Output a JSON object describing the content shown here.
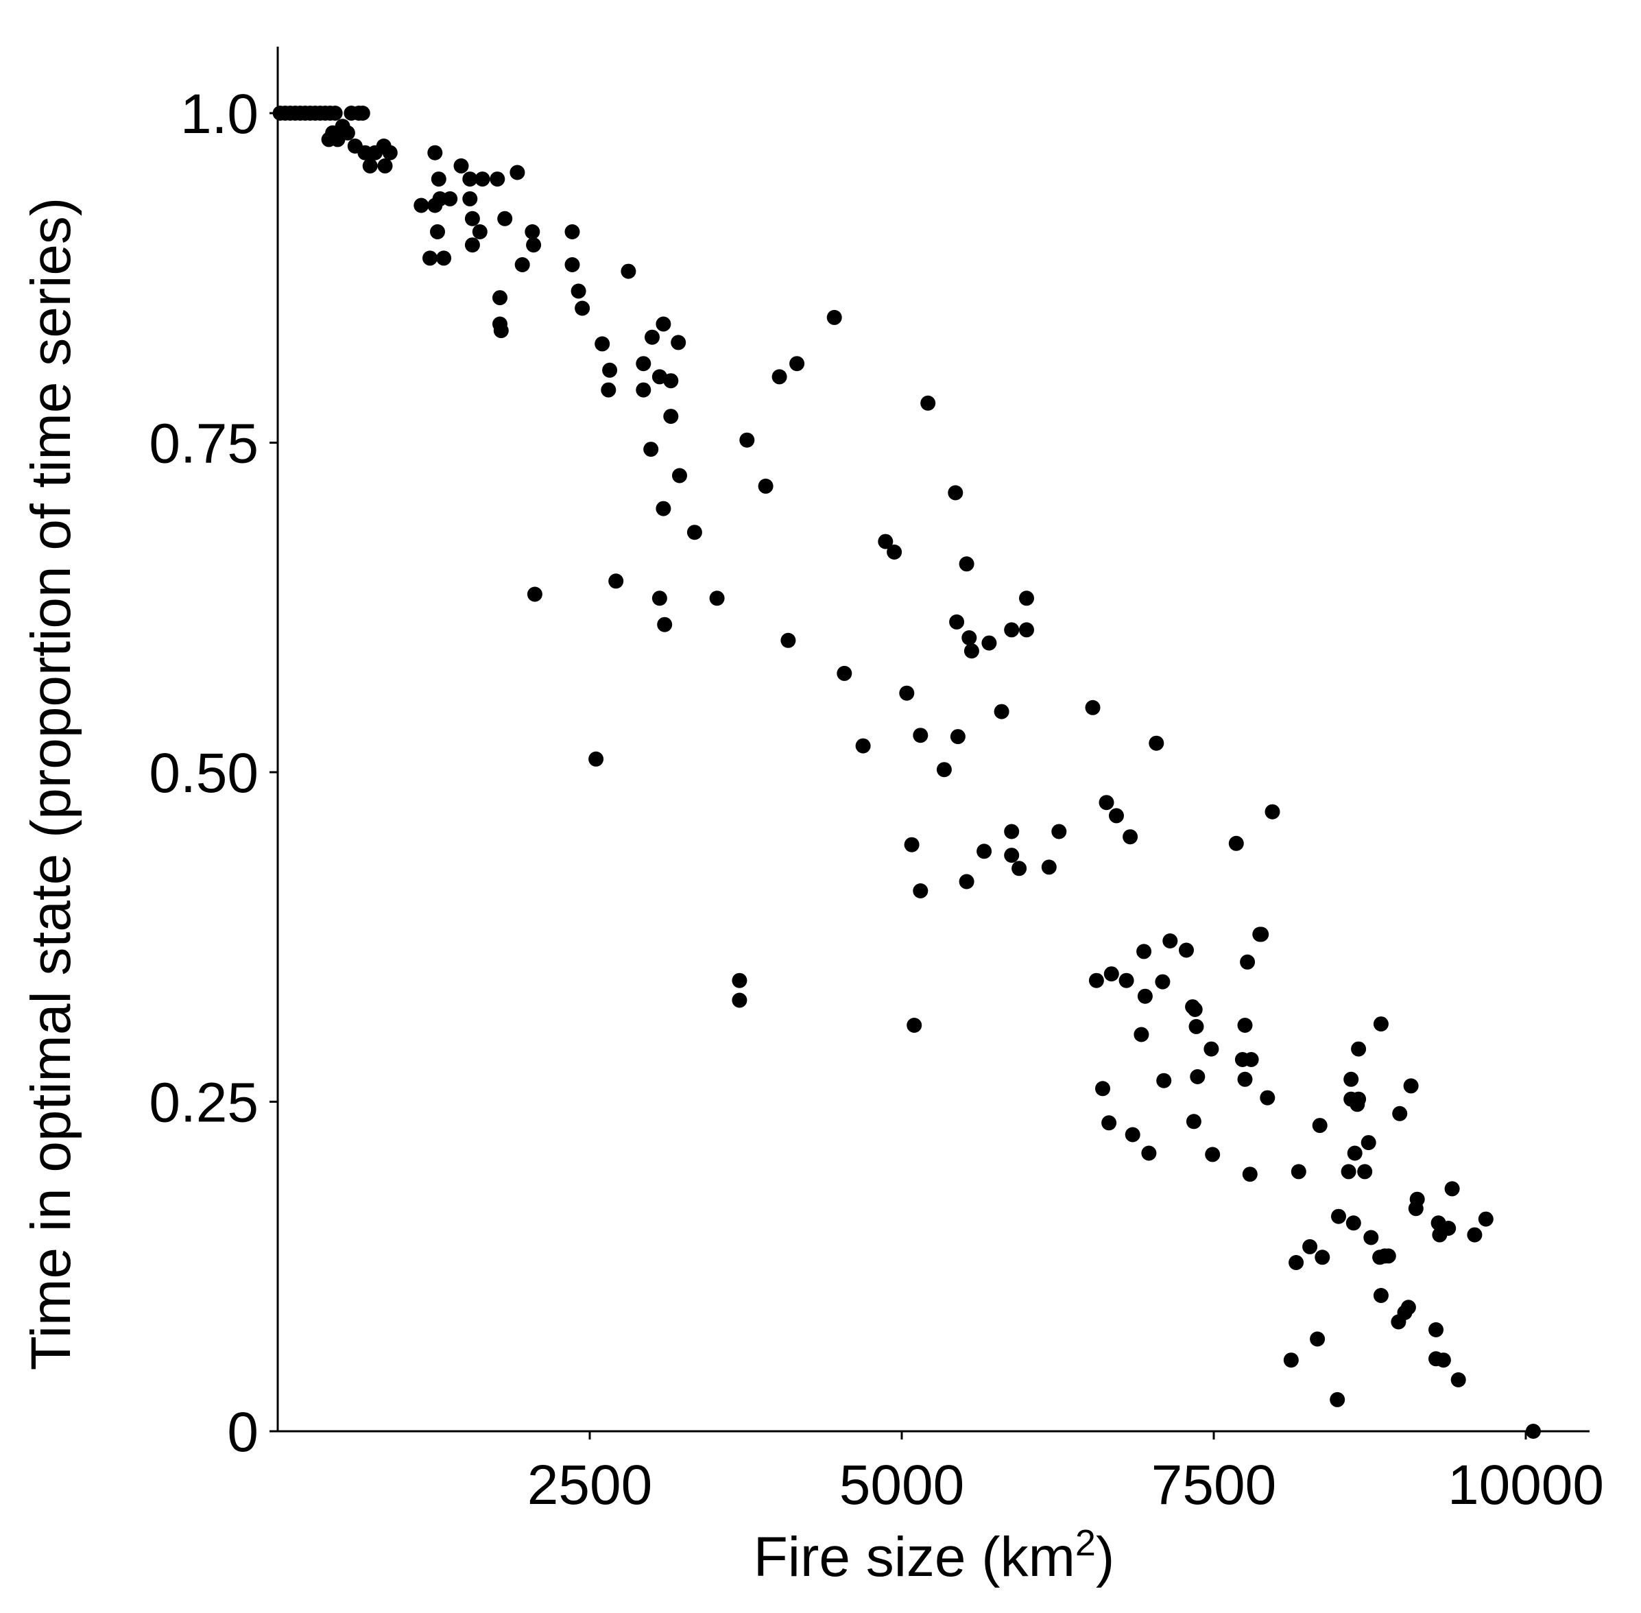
{
  "chart_data": {
    "type": "scatter",
    "title": "",
    "xlabel": "Fire size (km",
    "xlabel_sup": "2",
    "xlabel_close": ")",
    "ylabel": "Time in optimal state (proportion of time series)",
    "xlim": [
      0,
      10400
    ],
    "ylim": [
      0,
      1.05
    ],
    "x_ticks": [
      {
        "value": 2500,
        "label": "2500"
      },
      {
        "value": 5000,
        "label": "5000"
      },
      {
        "value": 7500,
        "label": "7500"
      },
      {
        "value": 10000,
        "label": "10000"
      }
    ],
    "y_ticks": [
      {
        "value": 0,
        "label": "0"
      },
      {
        "value": 0.25,
        "label": "0.25"
      },
      {
        "value": 0.5,
        "label": "0.50"
      },
      {
        "value": 0.75,
        "label": "0.75"
      },
      {
        "value": 1.0,
        "label": "1.0"
      }
    ],
    "grid": false,
    "legend": "none",
    "marker_color": "#000000",
    "points": [
      [
        20,
        1.0
      ],
      [
        60,
        1.0
      ],
      [
        100,
        1.0
      ],
      [
        140,
        1.0
      ],
      [
        180,
        1.0
      ],
      [
        220,
        1.0
      ],
      [
        260,
        1.0
      ],
      [
        300,
        1.0
      ],
      [
        340,
        1.0
      ],
      [
        380,
        1.0
      ],
      [
        420,
        1.0
      ],
      [
        460,
        1.0
      ],
      [
        410,
        0.98
      ],
      [
        440,
        0.985
      ],
      [
        480,
        0.98
      ],
      [
        520,
        0.99
      ],
      [
        560,
        0.985
      ],
      [
        590,
        1.0
      ],
      [
        620,
        0.975
      ],
      [
        650,
        1.0
      ],
      [
        680,
        1.0
      ],
      [
        700,
        0.97
      ],
      [
        740,
        0.96
      ],
      [
        780,
        0.97
      ],
      [
        850,
        0.975
      ],
      [
        860,
        0.96
      ],
      [
        900,
        0.97
      ],
      [
        1150,
        0.93
      ],
      [
        1220,
        0.89
      ],
      [
        1260,
        0.97
      ],
      [
        1260,
        0.93
      ],
      [
        1280,
        0.91
      ],
      [
        1290,
        0.95
      ],
      [
        1300,
        0.935
      ],
      [
        1330,
        0.89
      ],
      [
        1380,
        0.935
      ],
      [
        1470,
        0.96
      ],
      [
        1540,
        0.95
      ],
      [
        1540,
        0.935
      ],
      [
        1560,
        0.92
      ],
      [
        1560,
        0.9
      ],
      [
        1620,
        0.91
      ],
      [
        1640,
        0.95
      ],
      [
        1760,
        0.95
      ],
      [
        1780,
        0.86
      ],
      [
        1780,
        0.84
      ],
      [
        1790,
        0.835
      ],
      [
        1820,
        0.92
      ],
      [
        1920,
        0.955
      ],
      [
        1960,
        0.885
      ],
      [
        2040,
        0.91
      ],
      [
        2050,
        0.9
      ],
      [
        2060,
        0.635
      ],
      [
        2360,
        0.885
      ],
      [
        2360,
        0.91
      ],
      [
        2410,
        0.865
      ],
      [
        2440,
        0.852
      ],
      [
        2550,
        0.51
      ],
      [
        2600,
        0.825
      ],
      [
        2650,
        0.79
      ],
      [
        2660,
        0.805
      ],
      [
        2710,
        0.645
      ],
      [
        2810,
        0.88
      ],
      [
        2930,
        0.81
      ],
      [
        2930,
        0.79
      ],
      [
        2990,
        0.745
      ],
      [
        3000,
        0.83
      ],
      [
        3060,
        0.8
      ],
      [
        3060,
        0.632
      ],
      [
        3090,
        0.84
      ],
      [
        3090,
        0.7
      ],
      [
        3100,
        0.612
      ],
      [
        3150,
        0.797
      ],
      [
        3150,
        0.77
      ],
      [
        3210,
        0.826
      ],
      [
        3220,
        0.725
      ],
      [
        3340,
        0.682
      ],
      [
        3520,
        0.632
      ],
      [
        3700,
        0.342
      ],
      [
        3700,
        0.327
      ],
      [
        3760,
        0.752
      ],
      [
        3910,
        0.717
      ],
      [
        4020,
        0.8
      ],
      [
        4090,
        0.6
      ],
      [
        4160,
        0.81
      ],
      [
        4460,
        0.845
      ],
      [
        4540,
        0.575
      ],
      [
        4690,
        0.52
      ],
      [
        4870,
        0.675
      ],
      [
        4940,
        0.667
      ],
      [
        5040,
        0.56
      ],
      [
        5080,
        0.445
      ],
      [
        5100,
        0.308
      ],
      [
        5150,
        0.528
      ],
      [
        5150,
        0.41
      ],
      [
        5210,
        0.78
      ],
      [
        5340,
        0.502
      ],
      [
        5430,
        0.712
      ],
      [
        5440,
        0.614
      ],
      [
        5450,
        0.527
      ],
      [
        5520,
        0.658
      ],
      [
        5520,
        0.417
      ],
      [
        5540,
        0.602
      ],
      [
        5560,
        0.592
      ],
      [
        5660,
        0.44
      ],
      [
        5700,
        0.598
      ],
      [
        5800,
        0.546
      ],
      [
        5880,
        0.608
      ],
      [
        5880,
        0.455
      ],
      [
        5880,
        0.437
      ],
      [
        5940,
        0.427
      ],
      [
        6000,
        0.632
      ],
      [
        6000,
        0.608
      ],
      [
        6180,
        0.428
      ],
      [
        6260,
        0.455
      ],
      [
        6530,
        0.549
      ],
      [
        6560,
        0.342
      ],
      [
        6610,
        0.26
      ],
      [
        6640,
        0.477
      ],
      [
        6660,
        0.234
      ],
      [
        6680,
        0.347
      ],
      [
        6720,
        0.467
      ],
      [
        6800,
        0.342
      ],
      [
        6830,
        0.451
      ],
      [
        6850,
        0.225
      ],
      [
        6920,
        0.301
      ],
      [
        6940,
        0.364
      ],
      [
        6950,
        0.33
      ],
      [
        6980,
        0.211
      ],
      [
        7040,
        0.522
      ],
      [
        7090,
        0.341
      ],
      [
        7100,
        0.266
      ],
      [
        7150,
        0.372
      ],
      [
        7280,
        0.365
      ],
      [
        7330,
        0.322
      ],
      [
        7340,
        0.235
      ],
      [
        7350,
        0.32
      ],
      [
        7360,
        0.307
      ],
      [
        7370,
        0.269
      ],
      [
        7480,
        0.29
      ],
      [
        7490,
        0.21
      ],
      [
        7680,
        0.446
      ],
      [
        7730,
        0.282
      ],
      [
        7750,
        0.267
      ],
      [
        7750,
        0.308
      ],
      [
        7770,
        0.356
      ],
      [
        7790,
        0.195
      ],
      [
        7800,
        0.282
      ],
      [
        7870,
        0.377
      ],
      [
        7880,
        0.377
      ],
      [
        7930,
        0.253
      ],
      [
        7970,
        0.47
      ],
      [
        8120,
        0.054
      ],
      [
        8160,
        0.128
      ],
      [
        8180,
        0.197
      ],
      [
        8270,
        0.14
      ],
      [
        8330,
        0.07
      ],
      [
        8350,
        0.232
      ],
      [
        8370,
        0.132
      ],
      [
        8490,
        0.024
      ],
      [
        8500,
        0.163
      ],
      [
        8580,
        0.197
      ],
      [
        8600,
        0.252
      ],
      [
        8600,
        0.267
      ],
      [
        8620,
        0.158
      ],
      [
        8630,
        0.211
      ],
      [
        8650,
        0.248
      ],
      [
        8660,
        0.252
      ],
      [
        8660,
        0.29
      ],
      [
        8710,
        0.197
      ],
      [
        8740,
        0.219
      ],
      [
        8760,
        0.147
      ],
      [
        8830,
        0.132
      ],
      [
        8840,
        0.309
      ],
      [
        8840,
        0.103
      ],
      [
        8870,
        0.133
      ],
      [
        8900,
        0.133
      ],
      [
        8980,
        0.083
      ],
      [
        8990,
        0.241
      ],
      [
        9030,
        0.09
      ],
      [
        9060,
        0.094
      ],
      [
        9080,
        0.262
      ],
      [
        9120,
        0.169
      ],
      [
        9130,
        0.176
      ],
      [
        9280,
        0.077
      ],
      [
        9280,
        0.055
      ],
      [
        9300,
        0.158
      ],
      [
        9310,
        0.149
      ],
      [
        9340,
        0.054
      ],
      [
        9380,
        0.154
      ],
      [
        9410,
        0.184
      ],
      [
        9460,
        0.039
      ],
      [
        9590,
        0.149
      ],
      [
        9680,
        0.161
      ],
      [
        10060,
        0.0
      ]
    ]
  }
}
